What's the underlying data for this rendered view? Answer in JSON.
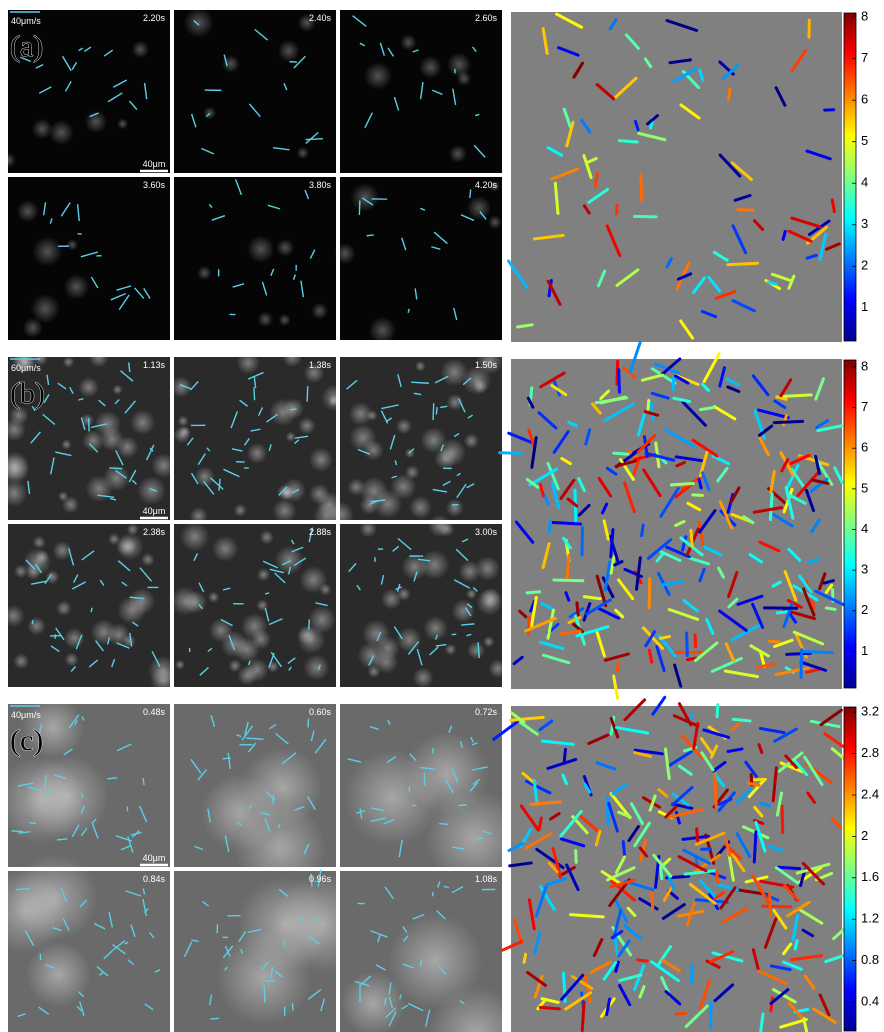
{
  "rows": [
    {
      "label": "(a)",
      "speed_scale": "40μm/s",
      "scale_bar": "40μm",
      "times": [
        "2.20s",
        "2.40s",
        "2.60s",
        "3.60s",
        "3.80s",
        "4.20s"
      ],
      "colorbar": {
        "range": [
          0.2,
          8.1
        ],
        "ticks": [
          1,
          2,
          3,
          4,
          5,
          6,
          7,
          8
        ]
      }
    },
    {
      "label": "(b)",
      "speed_scale": "60μm/s",
      "scale_bar": "40μm",
      "times": [
        "1.13s",
        "1.38s",
        "1.50s",
        "2.38s",
        "2.88s",
        "3.00s"
      ],
      "colorbar": {
        "range": [
          0.1,
          8.17
        ],
        "ticks": [
          1,
          2,
          3,
          4,
          5,
          6,
          7,
          8
        ]
      }
    },
    {
      "label": "(c)",
      "speed_scale": "40μm/s",
      "scale_bar": "40μm",
      "times": [
        "0.48s",
        "0.60s",
        "0.72s",
        "0.84s",
        "0.96s",
        "1.08s"
      ],
      "colorbar": {
        "range": [
          0.12,
          3.25
        ],
        "ticks": [
          0.4,
          0.8,
          1.2,
          1.6,
          2,
          2.4,
          2.8,
          3.2
        ]
      }
    }
  ]
}
